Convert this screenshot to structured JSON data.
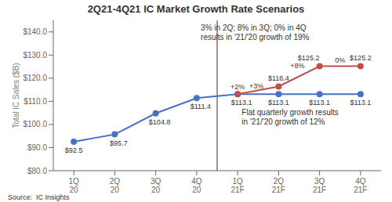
{
  "chart_data": {
    "type": "line",
    "title": "2Q21-4Q21 IC Market Growth Rate Scenarios",
    "y_label": "Total IC Sales ($B)",
    "categories": [
      "1Q\n20",
      "2Q\n20",
      "3Q\n20",
      "4Q\n20",
      "1Q\n21F",
      "2Q\n21F",
      "3Q\n21F",
      "4Q\n21F"
    ],
    "series": [
      {
        "color": "#4472C4",
        "marker": "o",
        "values": [
          92.5,
          95.7,
          104.8,
          111.4,
          113.1,
          113.1,
          113.1,
          113.1
        ],
        "value_labels": [
          "$92.5",
          "$95.7",
          "$104.8",
          "$111.4",
          "$113.1",
          "$113.1",
          "$113.1",
          "$113.1"
        ]
      },
      {
        "color": "#C0504D",
        "marker": "o",
        "values": [
          null,
          null,
          null,
          null,
          113.1,
          116.4,
          125.2,
          125.2
        ],
        "value_labels": [
          null,
          null,
          null,
          null,
          null,
          "$116.4",
          "$125.2",
          "$125.2"
        ],
        "change_labels": [
          null,
          null,
          null,
          null,
          "+2%",
          "+3%",
          "+8%",
          "0%"
        ]
      }
    ],
    "data_labels": true,
    "ylim": [
      80.0,
      145.0
    ],
    "yticks": [
      {
        "value": 80.0,
        "label": "$80.0"
      },
      {
        "value": 90.0,
        "label": "$90.0"
      },
      {
        "value": 100.0,
        "label": "$100.0"
      },
      {
        "value": 110.0,
        "label": "$110.0"
      },
      {
        "value": 120.0,
        "label": "$120.0"
      },
      {
        "value": 130.0,
        "label": "$130.0"
      },
      {
        "value": 140.0,
        "label": "$140.0"
      }
    ],
    "grid": false,
    "divider": {
      "between": [
        "4Q\n20",
        "1Q\n21F"
      ]
    },
    "annotations": [
      "3% in 2Q; 8% in 3Q; 0% in 4Q\nresults in '21/'20 growth of 19%",
      "Flat quarterly growth results\nin '21/'20 growth of 12%"
    ],
    "source": "Source:  IC Insights"
  }
}
